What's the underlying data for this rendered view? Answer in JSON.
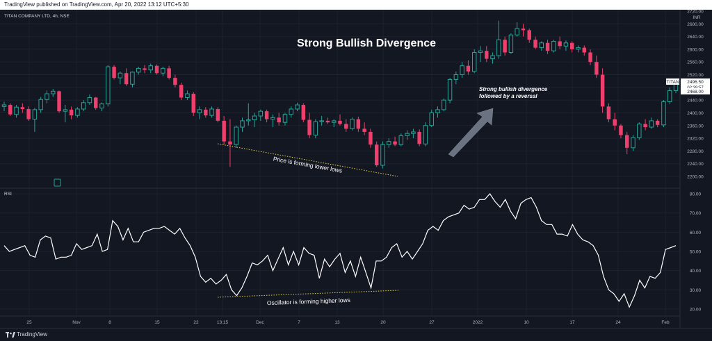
{
  "header": {
    "published_text": "TradingView published on TradingView.com, Apr 20, 2022 13:12 UTC+5:30",
    "symbol_line": "TITAN COMPANY LTD, 4h, NSE"
  },
  "price_scale": {
    "currency": "INR",
    "symbol_tag": "TITAN",
    "last_price_label": "2496.50",
    "countdown_label": "02:39:57",
    "level_label": "2468.00"
  },
  "footer": {
    "brand": "TradingView"
  },
  "colors": {
    "background": "#131722",
    "up_candle": "#26a69a",
    "down_candle": "#ef3f6d",
    "rsi_line": "#ffffff",
    "trend_dotted": "#e6d24a",
    "grid": "#1e222d",
    "axis_text": "#b2b5be"
  },
  "chart_data": [
    {
      "type": "candlestick",
      "title": "Strong Bullish Divergence",
      "ylim": [
        2180,
        2720
      ],
      "y_ticks": [
        2200,
        2240,
        2280,
        2320,
        2360,
        2400,
        2440,
        2480,
        2520,
        2560,
        2600,
        2640,
        2680,
        2720
      ],
      "y_tick_labels": [
        "2200.00",
        "2240.00",
        "2280.00",
        "2320.00",
        "2360.00",
        "2400.00",
        "2440.00",
        "2480.00",
        "2520.00",
        "2560.00",
        "2600.00",
        "2640.00",
        "2680.00",
        "2720.00"
      ],
      "x_ticks": [
        "25",
        "Nov",
        "8",
        "15",
        "22",
        "13:15",
        "Dec",
        "7",
        "13",
        "20",
        "27",
        "2022",
        "10",
        "17",
        "24",
        "Feb"
      ],
      "candles": [
        [
          2420,
          2435,
          2405,
          2425
        ],
        [
          2425,
          2430,
          2390,
          2395
        ],
        [
          2395,
          2425,
          2385,
          2418
        ],
        [
          2418,
          2430,
          2400,
          2412
        ],
        [
          2412,
          2420,
          2375,
          2380
        ],
        [
          2380,
          2415,
          2340,
          2410
        ],
        [
          2410,
          2450,
          2400,
          2442
        ],
        [
          2442,
          2470,
          2430,
          2460
        ],
        [
          2460,
          2475,
          2450,
          2468
        ],
        [
          2468,
          2470,
          2400,
          2405
        ],
        [
          2405,
          2425,
          2370,
          2410
        ],
        [
          2410,
          2420,
          2380,
          2392
        ],
        [
          2392,
          2418,
          2385,
          2412
        ],
        [
          2412,
          2440,
          2405,
          2432
        ],
        [
          2432,
          2458,
          2425,
          2448
        ],
        [
          2448,
          2450,
          2410,
          2415
        ],
        [
          2415,
          2432,
          2405,
          2428
        ],
        [
          2428,
          2550,
          2420,
          2545
        ],
        [
          2545,
          2550,
          2505,
          2510
        ],
        [
          2510,
          2530,
          2490,
          2525
        ],
        [
          2525,
          2540,
          2485,
          2490
        ],
        [
          2490,
          2530,
          2480,
          2528
        ],
        [
          2528,
          2545,
          2520,
          2540
        ],
        [
          2540,
          2550,
          2525,
          2535
        ],
        [
          2535,
          2555,
          2525,
          2548
        ],
        [
          2548,
          2552,
          2520,
          2525
        ],
        [
          2525,
          2545,
          2515,
          2540
        ],
        [
          2540,
          2548,
          2505,
          2510
        ],
        [
          2510,
          2520,
          2480,
          2488
        ],
        [
          2488,
          2495,
          2440,
          2448
        ],
        [
          2448,
          2470,
          2440,
          2460
        ],
        [
          2460,
          2465,
          2390,
          2400
        ],
        [
          2400,
          2420,
          2380,
          2410
        ],
        [
          2410,
          2418,
          2385,
          2392
        ],
        [
          2392,
          2420,
          2385,
          2412
        ],
        [
          2412,
          2418,
          2370,
          2375
        ],
        [
          2375,
          2390,
          2300,
          2310
        ],
        [
          2310,
          2380,
          2230,
          2300
        ],
        [
          2300,
          2360,
          2290,
          2355
        ],
        [
          2355,
          2385,
          2340,
          2375
        ],
        [
          2375,
          2430,
          2360,
          2378
        ],
        [
          2378,
          2400,
          2355,
          2390
        ],
        [
          2390,
          2410,
          2375,
          2405
        ],
        [
          2405,
          2410,
          2370,
          2380
        ],
        [
          2380,
          2395,
          2355,
          2385
        ],
        [
          2385,
          2400,
          2360,
          2370
        ],
        [
          2370,
          2400,
          2360,
          2395
        ],
        [
          2395,
          2420,
          2385,
          2412
        ],
        [
          2412,
          2432,
          2405,
          2425
        ],
        [
          2425,
          2430,
          2370,
          2378
        ],
        [
          2378,
          2400,
          2320,
          2330
        ],
        [
          2330,
          2380,
          2320,
          2372
        ],
        [
          2372,
          2390,
          2360,
          2375
        ],
        [
          2375,
          2385,
          2365,
          2370
        ],
        [
          2370,
          2380,
          2355,
          2375
        ],
        [
          2375,
          2395,
          2360,
          2365
        ],
        [
          2365,
          2380,
          2340,
          2350
        ],
        [
          2350,
          2385,
          2345,
          2380
        ],
        [
          2380,
          2388,
          2340,
          2350
        ],
        [
          2350,
          2370,
          2330,
          2340
        ],
        [
          2340,
          2350,
          2290,
          2300
        ],
        [
          2300,
          2310,
          2230,
          2235
        ],
        [
          2235,
          2310,
          2225,
          2300
        ],
        [
          2300,
          2320,
          2290,
          2310
        ],
        [
          2310,
          2325,
          2295,
          2300
        ],
        [
          2300,
          2335,
          2295,
          2328
        ],
        [
          2328,
          2345,
          2315,
          2335
        ],
        [
          2335,
          2350,
          2320,
          2340
        ],
        [
          2340,
          2348,
          2295,
          2302
        ],
        [
          2302,
          2370,
          2295,
          2360
        ],
        [
          2360,
          2410,
          2355,
          2400
        ],
        [
          2400,
          2420,
          2385,
          2410
        ],
        [
          2410,
          2445,
          2405,
          2440
        ],
        [
          2440,
          2510,
          2430,
          2505
        ],
        [
          2505,
          2530,
          2490,
          2520
        ],
        [
          2520,
          2560,
          2510,
          2548
        ],
        [
          2548,
          2565,
          2520,
          2530
        ],
        [
          2530,
          2600,
          2525,
          2590
        ],
        [
          2590,
          2610,
          2560,
          2595
        ],
        [
          2595,
          2610,
          2560,
          2570
        ],
        [
          2570,
          2590,
          2555,
          2580
        ],
        [
          2580,
          2690,
          2570,
          2630
        ],
        [
          2630,
          2640,
          2580,
          2590
        ],
        [
          2590,
          2650,
          2585,
          2645
        ],
        [
          2645,
          2685,
          2640,
          2665
        ],
        [
          2665,
          2680,
          2640,
          2660
        ],
        [
          2660,
          2665,
          2620,
          2630
        ],
        [
          2630,
          2640,
          2600,
          2605
        ],
        [
          2605,
          2625,
          2595,
          2620
        ],
        [
          2620,
          2630,
          2585,
          2595
        ],
        [
          2595,
          2630,
          2590,
          2625
        ],
        [
          2625,
          2640,
          2600,
          2610
        ],
        [
          2610,
          2628,
          2595,
          2620
        ],
        [
          2620,
          2625,
          2590,
          2600
        ],
        [
          2600,
          2612,
          2590,
          2605
        ],
        [
          2605,
          2612,
          2580,
          2590
        ],
        [
          2590,
          2600,
          2550,
          2560
        ],
        [
          2560,
          2580,
          2510,
          2520
        ],
        [
          2520,
          2540,
          2400,
          2420
        ],
        [
          2420,
          2430,
          2370,
          2380
        ],
        [
          2380,
          2400,
          2345,
          2360
        ],
        [
          2360,
          2365,
          2320,
          2330
        ],
        [
          2330,
          2340,
          2270,
          2290
        ],
        [
          2290,
          2330,
          2280,
          2322
        ],
        [
          2322,
          2370,
          2315,
          2365
        ],
        [
          2365,
          2380,
          2345,
          2355
        ],
        [
          2355,
          2385,
          2350,
          2375
        ],
        [
          2375,
          2380,
          2355,
          2362
        ],
        [
          2362,
          2440,
          2355,
          2435
        ],
        [
          2435,
          2480,
          2428,
          2470
        ],
        [
          2470,
          2500,
          2462,
          2496.5
        ]
      ],
      "annotations": [
        "Price is forming lower lows",
        "Strong bullish divergence followed by a reversal"
      ]
    },
    {
      "type": "line",
      "title": "RSI",
      "ylim": [
        15,
        82
      ],
      "y_ticks": [
        20,
        30,
        40,
        50,
        60,
        70,
        80
      ],
      "y_tick_labels": [
        "20.00",
        "30.00",
        "40.00",
        "50.00",
        "60.00",
        "70.00",
        "80.00"
      ],
      "series": [
        {
          "values": [
            53,
            50,
            51,
            52,
            53,
            48,
            47,
            56,
            58,
            57,
            46,
            47,
            47,
            48,
            54,
            51,
            52,
            53,
            59,
            50,
            51,
            66,
            63,
            56,
            62,
            55,
            55,
            60,
            61,
            62,
            62,
            63,
            61,
            59,
            62,
            57,
            53,
            47,
            37,
            34,
            36,
            33,
            35,
            38,
            30,
            27,
            31,
            37,
            44,
            43,
            45,
            48,
            40,
            46,
            52,
            43,
            50,
            43,
            52,
            49,
            48,
            36,
            46,
            42,
            46,
            49,
            39,
            45,
            37,
            47,
            39,
            31,
            45,
            45,
            47,
            52,
            54,
            47,
            50,
            46,
            50,
            54,
            61,
            63,
            61,
            66,
            68,
            69,
            70,
            74,
            72,
            73,
            77,
            77,
            80,
            76,
            73,
            77,
            71,
            67,
            75,
            77,
            78,
            73,
            66,
            64,
            64,
            59,
            59,
            58,
            64,
            59,
            56,
            55,
            53,
            48,
            37,
            30,
            28,
            24,
            28,
            21,
            27,
            35,
            31,
            37,
            36,
            39,
            51,
            52,
            53
          ]
        }
      ],
      "annotations": [
        "Oscillator is forming higher lows"
      ]
    }
  ]
}
